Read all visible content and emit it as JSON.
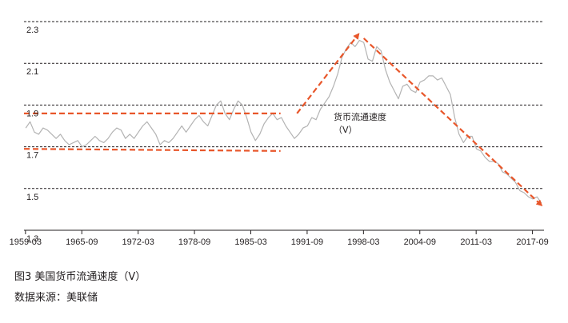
{
  "caption": {
    "figure_title": "图3 美国货币流通速度（V）",
    "source": "数据来源：美联储"
  },
  "chart_data": {
    "type": "line",
    "title": "",
    "xlabel": "",
    "ylabel": "",
    "ylim": [
      1.3,
      2.3
    ],
    "ytick_labels": [
      "2.3",
      "2.1",
      "1.9",
      "1.7",
      "1.5",
      "1.3"
    ],
    "yticks": [
      2.3,
      2.1,
      1.9,
      1.7,
      1.5,
      1.3
    ],
    "xtick_labels": [
      "1959-03",
      "1965-09",
      "1972-03",
      "1978-09",
      "1985-03",
      "1991-09",
      "1998-03",
      "2004-09",
      "2011-03",
      "2017-09"
    ],
    "xticks": [
      1959.17,
      1965.67,
      1972.17,
      1978.67,
      1985.17,
      1991.67,
      1998.17,
      2004.67,
      2011.17,
      2017.67
    ],
    "xlim": [
      1959.0,
      2019.0
    ],
    "grid": "horizontal dashed",
    "annotation": [
      "货币流通速度",
      "（V）"
    ],
    "colors": {
      "series": "#b3b3b3",
      "trend": "#e8562a",
      "grid": "#231f20"
    },
    "series": [
      {
        "x": [
          1959.2,
          1959.7,
          1960.2,
          1960.7,
          1961.2,
          1961.7,
          1962.2,
          1962.7,
          1963.2,
          1963.7,
          1964.2,
          1964.7,
          1965.2,
          1965.7,
          1966.2,
          1966.7,
          1967.2,
          1967.7,
          1968.2,
          1968.7,
          1969.2,
          1969.7,
          1970.2,
          1970.7,
          1971.2,
          1971.7,
          1972.2,
          1972.7,
          1973.2,
          1973.7,
          1974.2,
          1974.7,
          1975.2,
          1975.7,
          1976.2,
          1976.7,
          1977.2,
          1977.7,
          1978.2,
          1978.7,
          1979.2,
          1979.7,
          1980.2,
          1980.7,
          1981.2,
          1981.7,
          1982.2,
          1982.7,
          1983.2,
          1983.7,
          1984.2,
          1984.7,
          1985.2,
          1985.7,
          1986.2,
          1986.7,
          1987.2,
          1987.7,
          1988.2,
          1988.7,
          1989.2,
          1989.7,
          1990.2,
          1990.7,
          1991.2,
          1991.7,
          1992.2,
          1992.7,
          1993.2,
          1993.7,
          1994.2,
          1994.7,
          1995.2,
          1995.7,
          1996.2,
          1996.7,
          1997.2,
          1997.7,
          1998.2,
          1998.7,
          1999.2,
          1999.7,
          2000.2,
          2000.7,
          2001.2,
          2001.7,
          2002.2,
          2002.7,
          2003.2,
          2003.7,
          2004.2,
          2004.7,
          2005.2,
          2005.7,
          2006.2,
          2006.7,
          2007.2,
          2007.7,
          2008.2,
          2008.7,
          2009.2,
          2009.7,
          2010.2,
          2010.7,
          2011.2,
          2011.7,
          2012.2,
          2012.7,
          2013.2,
          2013.7,
          2014.2,
          2014.7,
          2015.2,
          2015.7,
          2016.2,
          2016.7,
          2017.2,
          2017.7,
          2018.2,
          2018.7
        ],
        "values": [
          1.79,
          1.82,
          1.77,
          1.76,
          1.79,
          1.78,
          1.76,
          1.74,
          1.76,
          1.73,
          1.71,
          1.72,
          1.73,
          1.7,
          1.71,
          1.73,
          1.75,
          1.73,
          1.72,
          1.74,
          1.77,
          1.79,
          1.78,
          1.74,
          1.76,
          1.74,
          1.77,
          1.8,
          1.82,
          1.79,
          1.76,
          1.71,
          1.73,
          1.72,
          1.74,
          1.77,
          1.8,
          1.77,
          1.8,
          1.83,
          1.85,
          1.82,
          1.8,
          1.85,
          1.9,
          1.92,
          1.86,
          1.83,
          1.88,
          1.92,
          1.9,
          1.84,
          1.77,
          1.73,
          1.76,
          1.81,
          1.84,
          1.86,
          1.83,
          1.84,
          1.8,
          1.77,
          1.74,
          1.76,
          1.79,
          1.8,
          1.84,
          1.83,
          1.88,
          1.91,
          1.94,
          1.99,
          2.05,
          2.13,
          2.17,
          2.2,
          2.18,
          2.21,
          2.2,
          2.12,
          2.11,
          2.18,
          2.16,
          2.07,
          2.01,
          1.97,
          1.93,
          1.99,
          2.0,
          1.97,
          1.96,
          2.01,
          2.02,
          2.04,
          2.04,
          2.02,
          2.03,
          1.99,
          1.95,
          1.84,
          1.76,
          1.72,
          1.75,
          1.75,
          1.69,
          1.68,
          1.65,
          1.63,
          1.63,
          1.62,
          1.58,
          1.57,
          1.55,
          1.53,
          1.49,
          1.48,
          1.46,
          1.45,
          1.46,
          1.43
        ]
      }
    ],
    "trend_lines": [
      {
        "x": [
          1959.0,
          1988.6
        ],
        "values": [
          1.86,
          1.86
        ]
      },
      {
        "x": [
          1959.0,
          1988.6
        ],
        "values": [
          1.69,
          1.68
        ]
      },
      {
        "x": [
          1990.5,
          1997.6
        ],
        "values": [
          1.86,
          2.24
        ]
      },
      {
        "x": [
          1998.2,
          2018.7
        ],
        "values": [
          2.22,
          1.42
        ]
      }
    ]
  }
}
